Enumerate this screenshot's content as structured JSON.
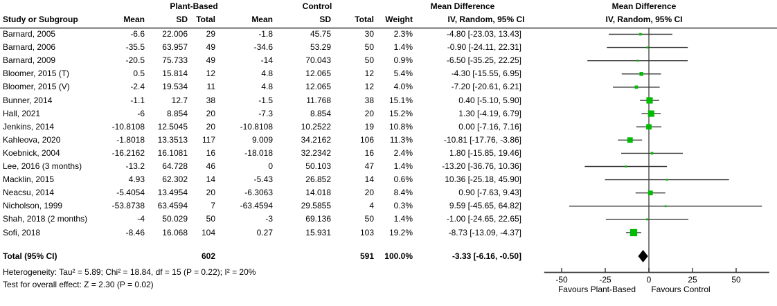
{
  "header": {
    "group1": "Plant-Based",
    "group2": "Control",
    "md_col_line1": "Mean Difference",
    "md_col_line2": "IV, Random, 95% CI",
    "plot_col_line1": "Mean Difference",
    "plot_col_line2": "IV, Random, 95% CI",
    "study": "Study or Subgroup",
    "mean": "Mean",
    "sd": "SD",
    "total": "Total",
    "weight": "Weight"
  },
  "colors": {
    "marker_green": "#00bb00",
    "ci_line": "#3a3a3a",
    "zero_line": "#808080",
    "axis": "#404040",
    "diamond": "#000000"
  },
  "chart_data": {
    "type": "forest",
    "x_ticks": [
      -50,
      -25,
      0,
      25,
      50
    ],
    "x_axis_range": [
      -60,
      69
    ],
    "favours_left": "Favours Plant-Based",
    "favours_right": "Favours Control",
    "studies": [
      {
        "name": "Barnard, 2005",
        "mean1": "-6.6",
        "sd1": "22.006",
        "total1": "29",
        "mean2": "-1.8",
        "sd2": "45.75",
        "total2": "30",
        "weight": "2.3%",
        "w": 2.3,
        "ci_text": "-4.80 [-23.03, 13.43]",
        "md": -4.8,
        "lo": -23.03,
        "hi": 13.43
      },
      {
        "name": "Barnard, 2006",
        "mean1": "-35.5",
        "sd1": "63.957",
        "total1": "49",
        "mean2": "-34.6",
        "sd2": "53.29",
        "total2": "50",
        "weight": "1.4%",
        "w": 1.4,
        "ci_text": "-0.90 [-24.11, 22.31]",
        "md": -0.9,
        "lo": -24.11,
        "hi": 22.31
      },
      {
        "name": "Barnard, 2009",
        "mean1": "-20.5",
        "sd1": "75.733",
        "total1": "49",
        "mean2": "-14",
        "sd2": "70.043",
        "total2": "50",
        "weight": "0.9%",
        "w": 0.9,
        "ci_text": "-6.50 [-35.25, 22.25]",
        "md": -6.5,
        "lo": -35.25,
        "hi": 22.25
      },
      {
        "name": "Bloomer, 2015 (T)",
        "mean1": "0.5",
        "sd1": "15.814",
        "total1": "12",
        "mean2": "4.8",
        "sd2": "12.065",
        "total2": "12",
        "weight": "5.4%",
        "w": 5.4,
        "ci_text": "-4.30 [-15.55, 6.95]",
        "md": -4.3,
        "lo": -15.55,
        "hi": 6.95
      },
      {
        "name": "Bloomer, 2015 (V)",
        "mean1": "-2.4",
        "sd1": "19.534",
        "total1": "11",
        "mean2": "4.8",
        "sd2": "12.065",
        "total2": "12",
        "weight": "4.0%",
        "w": 4.0,
        "ci_text": "-7.20 [-20.61, 6.21]",
        "md": -7.2,
        "lo": -20.61,
        "hi": 6.21
      },
      {
        "name": "Bunner, 2014",
        "mean1": "-1.1",
        "sd1": "12.7",
        "total1": "38",
        "mean2": "-1.5",
        "sd2": "11.768",
        "total2": "38",
        "weight": "15.1%",
        "w": 15.1,
        "ci_text": "0.40 [-5.10, 5.90]",
        "md": 0.4,
        "lo": -5.1,
        "hi": 5.9
      },
      {
        "name": "Hall, 2021",
        "mean1": "-6",
        "sd1": "8.854",
        "total1": "20",
        "mean2": "-7.3",
        "sd2": "8.854",
        "total2": "20",
        "weight": "15.2%",
        "w": 15.2,
        "ci_text": "1.30 [-4.19, 6.79]",
        "md": 1.3,
        "lo": -4.19,
        "hi": 6.79
      },
      {
        "name": "Jenkins, 2014",
        "mean1": "-10.8108",
        "sd1": "12.5045",
        "total1": "20",
        "mean2": "-10.8108",
        "sd2": "10.2522",
        "total2": "19",
        "weight": "10.8%",
        "w": 10.8,
        "ci_text": "0.00 [-7.16, 7.16]",
        "md": 0.0,
        "lo": -7.16,
        "hi": 7.16
      },
      {
        "name": "Kahleova, 2020",
        "mean1": "-1.8018",
        "sd1": "13.3513",
        "total1": "117",
        "mean2": "9.009",
        "sd2": "34.2162",
        "total2": "106",
        "weight": "11.3%",
        "w": 11.3,
        "ci_text": "-10.81 [-17.76, -3.86]",
        "md": -10.81,
        "lo": -17.76,
        "hi": -3.86
      },
      {
        "name": "Koebnick, 2004",
        "mean1": "-16.2162",
        "sd1": "16.1081",
        "total1": "16",
        "mean2": "-18.018",
        "sd2": "32.2342",
        "total2": "16",
        "weight": "2.4%",
        "w": 2.4,
        "ci_text": "1.80 [-15.85, 19.46]",
        "md": 1.8,
        "lo": -15.85,
        "hi": 19.46
      },
      {
        "name": "Lee, 2016 (3 months)",
        "mean1": "-13.2",
        "sd1": "64.728",
        "total1": "46",
        "mean2": "0",
        "sd2": "50.103",
        "total2": "47",
        "weight": "1.4%",
        "w": 1.4,
        "ci_text": "-13.20 [-36.76, 10.36]",
        "md": -13.2,
        "lo": -36.76,
        "hi": 10.36
      },
      {
        "name": "Macklin, 2015",
        "mean1": "4.93",
        "sd1": "62.302",
        "total1": "14",
        "mean2": "-5.43",
        "sd2": "26.852",
        "total2": "14",
        "weight": "0.6%",
        "w": 0.6,
        "ci_text": "10.36 [-25.18, 45.90]",
        "md": 10.36,
        "lo": -25.18,
        "hi": 45.9
      },
      {
        "name": "Neacsu, 2014",
        "mean1": "-5.4054",
        "sd1": "13.4954",
        "total1": "20",
        "mean2": "-6.3063",
        "sd2": "14.018",
        "total2": "20",
        "weight": "8.4%",
        "w": 8.4,
        "ci_text": "0.90 [-7.63, 9.43]",
        "md": 0.9,
        "lo": -7.63,
        "hi": 9.43
      },
      {
        "name": "Nicholson, 1999",
        "mean1": "-53.8738",
        "sd1": "63.4594",
        "total1": "7",
        "mean2": "-63.4594",
        "sd2": "29.5855",
        "total2": "4",
        "weight": "0.3%",
        "w": 0.3,
        "ci_text": "9.59 [-45.65, 64.82]",
        "md": 9.59,
        "lo": -45.65,
        "hi": 64.82
      },
      {
        "name": "Shah, 2018 (2 months)",
        "mean1": "-4",
        "sd1": "50.029",
        "total1": "50",
        "mean2": "-3",
        "sd2": "69.136",
        "total2": "50",
        "weight": "1.4%",
        "w": 1.4,
        "ci_text": "-1.00 [-24.65, 22.65]",
        "md": -1.0,
        "lo": -24.65,
        "hi": 22.65
      },
      {
        "name": "Sofi, 2018",
        "mean1": "-8.46",
        "sd1": "16.068",
        "total1": "104",
        "mean2": "0.27",
        "sd2": "15.931",
        "total2": "103",
        "weight": "19.2%",
        "w": 19.2,
        "ci_text": "-8.73 [-13.09, -4.37]",
        "md": -8.73,
        "lo": -13.09,
        "hi": -4.37
      }
    ],
    "total": {
      "label": "Total (95% CI)",
      "total1": "602",
      "total2": "591",
      "weight": "100.0%",
      "ci_text": "-3.33 [-6.16, -0.50]",
      "md": -3.33,
      "lo": -6.16,
      "hi": -0.5
    },
    "heterogeneity": "Heterogeneity: Tau² = 5.89; Chi² = 18.84, df = 15 (P = 0.22); I² = 20%",
    "overall_effect": "Test for overall effect: Z = 2.30 (P = 0.02)"
  }
}
